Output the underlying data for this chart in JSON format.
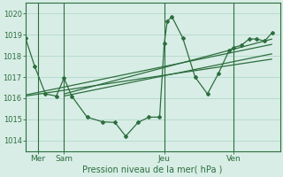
{
  "bg_color": "#d8ede6",
  "grid_color": "#b0d8cc",
  "line_color": "#2d6e3e",
  "ylabel_ticks": [
    1014,
    1015,
    1016,
    1017,
    1018,
    1019,
    1020
  ],
  "ylim": [
    1013.5,
    1020.5
  ],
  "xlim": [
    0,
    16.5
  ],
  "xlabel": "Pression niveau de la mer( hPa )",
  "day_labels": [
    "Mer",
    "Sam",
    "Jeu",
    "Ven"
  ],
  "day_positions": [
    0.8,
    2.5,
    9.0,
    13.5
  ],
  "vlines": [
    0.8,
    2.5,
    9.0,
    13.5
  ],
  "series1_x": [
    0.0,
    0.6,
    1.3,
    2.0,
    2.5,
    3.0,
    4.0,
    5.0,
    5.8,
    6.5,
    7.3,
    8.0,
    8.7,
    9.0,
    9.2,
    9.5,
    10.2,
    11.0,
    11.8,
    12.5,
    13.2,
    13.5,
    14.0,
    14.5,
    15.0,
    15.5,
    16.0
  ],
  "series1_y": [
    1018.85,
    1017.5,
    1016.2,
    1016.1,
    1016.95,
    1016.1,
    1015.1,
    1014.88,
    1014.85,
    1014.2,
    1014.85,
    1015.1,
    1015.1,
    1018.6,
    1019.65,
    1019.85,
    1018.85,
    1017.0,
    1016.2,
    1017.15,
    1018.25,
    1018.4,
    1018.5,
    1018.8,
    1018.8,
    1018.7,
    1019.1
  ],
  "trend_lines": [
    {
      "x": [
        0.0,
        16.0
      ],
      "y": [
        1016.15,
        1018.55
      ]
    },
    {
      "x": [
        0.0,
        16.0
      ],
      "y": [
        1016.1,
        1017.85
      ]
    },
    {
      "x": [
        2.5,
        16.0
      ],
      "y": [
        1016.2,
        1018.8
      ]
    },
    {
      "x": [
        2.5,
        16.0
      ],
      "y": [
        1016.1,
        1018.1
      ]
    }
  ]
}
